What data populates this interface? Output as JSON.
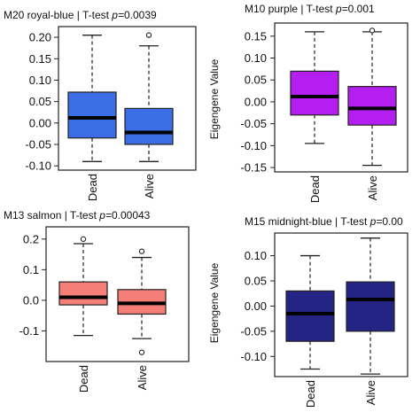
{
  "chart_data": [
    {
      "type": "box",
      "title_main": "M20 royal-blue | T-test ",
      "title_p": "p=",
      "title_pval": "0.0039",
      "ylabel": "",
      "color": "#3b6ee6",
      "categories": [
        "Dead",
        "Alive"
      ],
      "yticks": [
        "0.20",
        "0.15",
        "0.10",
        "0.05",
        "0.00",
        "-0.05",
        "-0.10"
      ],
      "ylim": [
        -0.11,
        0.225
      ],
      "boxes": [
        {
          "name": "Dead",
          "min": -0.09,
          "q1": -0.035,
          "median": 0.012,
          "q3": 0.072,
          "max": 0.205,
          "outliers": []
        },
        {
          "name": "Alive",
          "min": -0.09,
          "q1": -0.05,
          "median": -0.022,
          "q3": 0.034,
          "max": 0.18,
          "outliers": [
            0.205
          ]
        }
      ]
    },
    {
      "type": "box",
      "title_main": "M10 purple | T-test ",
      "title_p": "p=",
      "title_pval": "0.001",
      "ylabel": "Eigengene Value",
      "color": "#b51ef0",
      "categories": [
        "Dead",
        "Alive"
      ],
      "yticks": [
        "0.15",
        "0.10",
        "0.05",
        "0.00",
        "-0.05",
        "-0.10",
        "-0.15"
      ],
      "ylim": [
        -0.16,
        0.18
      ],
      "boxes": [
        {
          "name": "Dead",
          "min": -0.095,
          "q1": -0.03,
          "median": 0.012,
          "q3": 0.07,
          "max": 0.16,
          "outliers": []
        },
        {
          "name": "Alive",
          "min": -0.145,
          "q1": -0.053,
          "median": -0.015,
          "q3": 0.035,
          "max": 0.16,
          "outliers": [
            0.163
          ]
        }
      ]
    },
    {
      "type": "box",
      "title_main": "M13 salmon | T-test ",
      "title_p": "p=",
      "title_pval": "0.00043",
      "ylabel": "",
      "color": "#f57f78",
      "categories": [
        "Dead",
        "Alive"
      ],
      "yticks": [
        "0.2",
        "0.1",
        "0.0",
        "-0.1"
      ],
      "ylim": [
        -0.2,
        0.24
      ],
      "boxes": [
        {
          "name": "Dead",
          "min": -0.115,
          "q1": -0.015,
          "median": 0.01,
          "q3": 0.06,
          "max": 0.185,
          "outliers": [
            0.2
          ]
        },
        {
          "name": "Alive",
          "min": -0.125,
          "q1": -0.045,
          "median": -0.01,
          "q3": 0.035,
          "max": 0.14,
          "outliers": [
            0.16,
            -0.17
          ]
        }
      ]
    },
    {
      "type": "box",
      "title_main": "M15 midnight-blue | T-test ",
      "title_p": "p=",
      "title_pval": "0.00",
      "ylabel": "Eigengene Value",
      "color": "#242484",
      "categories": [
        "Dead",
        "Alive"
      ],
      "yticks": [
        "0.10",
        "0.05",
        "0.00",
        "-0.05",
        "-0.10"
      ],
      "ylim": [
        -0.14,
        0.145
      ],
      "boxes": [
        {
          "name": "Dead",
          "min": -0.125,
          "q1": -0.07,
          "median": -0.015,
          "q3": 0.03,
          "max": 0.1,
          "outliers": []
        },
        {
          "name": "Alive",
          "min": -0.135,
          "q1": -0.05,
          "median": 0.013,
          "q3": 0.048,
          "max": 0.135,
          "outliers": []
        }
      ]
    }
  ]
}
